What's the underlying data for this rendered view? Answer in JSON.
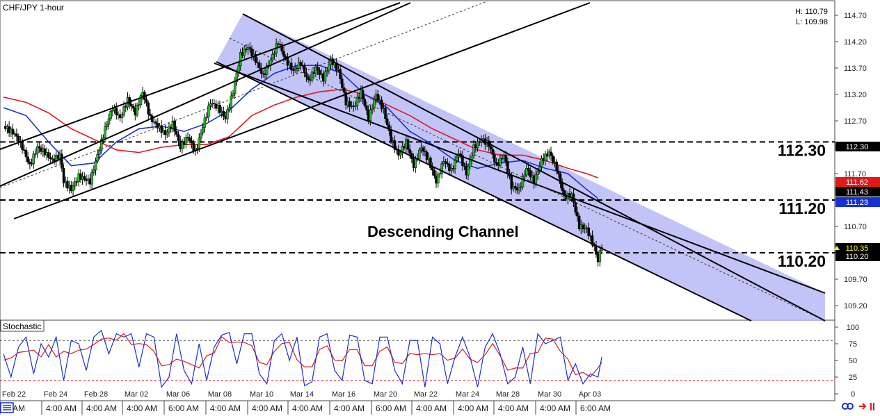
{
  "chart_data": [
    {
      "type": "line",
      "title": "CHF/JPY 1-hour",
      "high_label": "H: 110.79",
      "low_label": "L: 109.98",
      "annotation": "Descending Channel",
      "ylim": [
        108.95,
        114.95
      ],
      "y_ticks": [
        "114.70",
        "114.20",
        "113.70",
        "113.20",
        "112.70",
        "112.20",
        "111.70",
        "111.20",
        "110.70",
        "110.20",
        "109.70",
        "109.20"
      ],
      "support_resistance": [
        {
          "price": 112.3,
          "label": "112.30"
        },
        {
          "price": 111.2,
          "label": "111.20"
        },
        {
          "price": 110.2,
          "label": "110.20"
        }
      ],
      "price_badges": [
        {
          "value": "112.30",
          "bg": "#000000",
          "fg": "#ffffff"
        },
        {
          "value": "111.62",
          "bg": "#e0191b",
          "fg": "#ffffff"
        },
        {
          "value": "111.43",
          "bg": "#000000",
          "fg": "#ffffff"
        },
        {
          "value": "111.23",
          "bg": "#1730d6",
          "fg": "#ffffff"
        },
        {
          "value": "110.35",
          "bg": "#000000",
          "fg": "#ffff00"
        },
        {
          "value": "110.20",
          "bg": "#000000",
          "fg": "#ffffff"
        }
      ],
      "series": [
        {
          "name": "",
          "color": "#1730d6",
          "role": "moving-average-fast"
        },
        {
          "name": "",
          "color": "#e0191b",
          "role": "moving-average-slow"
        }
      ],
      "price_path": [
        [
          0,
          112.6
        ],
        [
          3,
          112.45
        ],
        [
          5,
          112.2
        ],
        [
          7,
          111.85
        ],
        [
          9,
          112.2
        ],
        [
          11,
          112.1
        ],
        [
          13,
          111.95
        ],
        [
          15,
          112.05
        ],
        [
          16,
          111.55
        ],
        [
          18,
          111.4
        ],
        [
          20,
          111.65
        ],
        [
          23,
          111.55
        ],
        [
          25,
          112.05
        ],
        [
          27,
          112.55
        ],
        [
          29,
          112.95
        ],
        [
          31,
          112.75
        ],
        [
          33,
          113.1
        ],
        [
          35,
          112.85
        ],
        [
          37,
          113.25
        ],
        [
          39,
          112.75
        ],
        [
          41,
          112.6
        ],
        [
          43,
          112.45
        ],
        [
          45,
          112.65
        ],
        [
          47,
          112.2
        ],
        [
          49,
          112.4
        ],
        [
          51,
          112.1
        ],
        [
          53,
          112.6
        ],
        [
          55,
          113.05
        ],
        [
          57,
          112.95
        ],
        [
          59,
          112.75
        ],
        [
          61,
          113.25
        ],
        [
          63,
          113.95
        ],
        [
          65,
          114.1
        ],
        [
          67,
          113.85
        ],
        [
          69,
          113.55
        ],
        [
          71,
          113.85
        ],
        [
          73,
          114.2
        ],
        [
          75,
          113.85
        ],
        [
          77,
          113.65
        ],
        [
          79,
          113.8
        ],
        [
          81,
          113.45
        ],
        [
          83,
          113.7
        ],
        [
          85,
          113.5
        ],
        [
          87,
          113.85
        ],
        [
          89,
          113.65
        ],
        [
          91,
          113.05
        ],
        [
          93,
          112.95
        ],
        [
          95,
          113.25
        ],
        [
          97,
          112.75
        ],
        [
          99,
          113.2
        ],
        [
          101,
          112.9
        ],
        [
          103,
          112.35
        ],
        [
          105,
          112.05
        ],
        [
          107,
          112.3
        ],
        [
          109,
          111.85
        ],
        [
          111,
          112.2
        ],
        [
          113,
          111.95
        ],
        [
          115,
          111.55
        ],
        [
          117,
          111.95
        ],
        [
          119,
          111.75
        ],
        [
          121,
          112.1
        ],
        [
          123,
          111.7
        ],
        [
          125,
          112.2
        ],
        [
          127,
          112.35
        ],
        [
          129,
          112.25
        ],
        [
          131,
          111.85
        ],
        [
          133,
          112.05
        ],
        [
          135,
          111.45
        ],
        [
          137,
          111.4
        ],
        [
          139,
          111.8
        ],
        [
          141,
          111.55
        ],
        [
          143,
          111.95
        ],
        [
          145,
          112.1
        ],
        [
          147,
          111.8
        ],
        [
          149,
          111.25
        ],
        [
          151,
          111.3
        ],
        [
          153,
          110.7
        ],
        [
          155,
          110.65
        ],
        [
          157,
          110.3
        ],
        [
          158,
          110.05
        ],
        [
          159,
          110.35
        ]
      ],
      "ma_fast": [
        [
          0,
          112.95
        ],
        [
          6,
          112.8
        ],
        [
          12,
          112.3
        ],
        [
          18,
          111.85
        ],
        [
          24,
          111.9
        ],
        [
          30,
          112.3
        ],
        [
          36,
          112.55
        ],
        [
          42,
          112.6
        ],
        [
          48,
          112.5
        ],
        [
          54,
          112.65
        ],
        [
          60,
          112.9
        ],
        [
          66,
          113.3
        ],
        [
          72,
          113.6
        ],
        [
          78,
          113.75
        ],
        [
          84,
          113.75
        ],
        [
          90,
          113.6
        ],
        [
          96,
          113.2
        ],
        [
          102,
          112.95
        ],
        [
          108,
          112.5
        ],
        [
          114,
          112.25
        ],
        [
          120,
          111.95
        ],
        [
          126,
          111.8
        ],
        [
          132,
          111.9
        ],
        [
          138,
          111.95
        ],
        [
          144,
          111.8
        ],
        [
          150,
          111.7
        ],
        [
          155,
          111.4
        ],
        [
          158,
          111.23
        ]
      ],
      "ma_slow": [
        [
          0,
          113.15
        ],
        [
          6,
          113.05
        ],
        [
          12,
          112.85
        ],
        [
          18,
          112.55
        ],
        [
          24,
          112.35
        ],
        [
          30,
          112.15
        ],
        [
          36,
          112.1
        ],
        [
          42,
          112.2
        ],
        [
          48,
          112.25
        ],
        [
          54,
          112.25
        ],
        [
          60,
          112.4
        ],
        [
          66,
          112.8
        ],
        [
          72,
          113.0
        ],
        [
          78,
          113.15
        ],
        [
          84,
          113.25
        ],
        [
          90,
          113.3
        ],
        [
          96,
          113.2
        ],
        [
          102,
          113.0
        ],
        [
          108,
          112.8
        ],
        [
          114,
          112.55
        ],
        [
          120,
          112.35
        ],
        [
          126,
          112.15
        ],
        [
          132,
          112.05
        ],
        [
          138,
          112.05
        ],
        [
          144,
          111.95
        ],
        [
          150,
          111.8
        ],
        [
          155,
          111.7
        ],
        [
          158,
          111.62
        ]
      ],
      "x_labels_dates": [
        "Feb 22",
        "Feb 24",
        "Feb 28",
        "Mar 02",
        "Mar 06",
        "Mar 08",
        "Mar 10",
        "Mar 14",
        "Mar 16",
        "Mar 20",
        "Mar 22",
        "Mar 24",
        "Mar 28",
        "Mar 30",
        "Apr 03"
      ],
      "x_labels_times": [
        "AM",
        "4:00 AM",
        "4:00 AM",
        "4:00 AM",
        "6:00 AM",
        "4:00 AM",
        "4:00 AM",
        "4:00 AM",
        "4:00 AM",
        "6:00 AM",
        "4:00 AM",
        "4:00 AM",
        "4:00 AM",
        "4:00 AM",
        "6:00 AM"
      ]
    },
    {
      "type": "line",
      "title": "Stochastic",
      "ylim": [
        0,
        100
      ],
      "y_ticks": [
        "100",
        "75",
        "50",
        "25",
        "0"
      ],
      "levels": [
        80,
        20
      ],
      "series": [
        {
          "name": "",
          "color": "#e0191b",
          "role": "%D"
        },
        {
          "name": "",
          "color": "#1730d6",
          "role": "%K"
        }
      ],
      "k_values": [
        [
          0,
          60
        ],
        [
          2,
          25
        ],
        [
          4,
          70
        ],
        [
          6,
          85
        ],
        [
          8,
          30
        ],
        [
          10,
          75
        ],
        [
          12,
          55
        ],
        [
          14,
          85
        ],
        [
          16,
          20
        ],
        [
          18,
          80
        ],
        [
          20,
          75
        ],
        [
          22,
          35
        ],
        [
          24,
          85
        ],
        [
          26,
          95
        ],
        [
          28,
          60
        ],
        [
          30,
          90
        ],
        [
          32,
          85
        ],
        [
          34,
          90
        ],
        [
          36,
          40
        ],
        [
          38,
          90
        ],
        [
          40,
          85
        ],
        [
          42,
          10
        ],
        [
          44,
          25
        ],
        [
          46,
          90
        ],
        [
          48,
          35
        ],
        [
          50,
          15
        ],
        [
          52,
          75
        ],
        [
          54,
          20
        ],
        [
          56,
          70
        ],
        [
          58,
          88
        ],
        [
          60,
          92
        ],
        [
          62,
          45
        ],
        [
          64,
          90
        ],
        [
          66,
          90
        ],
        [
          68,
          30
        ],
        [
          70,
          15
        ],
        [
          72,
          80
        ],
        [
          74,
          90
        ],
        [
          76,
          50
        ],
        [
          78,
          85
        ],
        [
          80,
          12
        ],
        [
          82,
          18
        ],
        [
          84,
          85
        ],
        [
          86,
          90
        ],
        [
          88,
          35
        ],
        [
          90,
          20
        ],
        [
          92,
          88
        ],
        [
          94,
          85
        ],
        [
          96,
          20
        ],
        [
          98,
          15
        ],
        [
          100,
          85
        ],
        [
          102,
          85
        ],
        [
          104,
          35
        ],
        [
          106,
          15
        ],
        [
          108,
          80
        ],
        [
          110,
          80
        ],
        [
          112,
          10
        ],
        [
          114,
          85
        ],
        [
          116,
          75
        ],
        [
          118,
          15
        ],
        [
          120,
          55
        ],
        [
          122,
          85
        ],
        [
          124,
          55
        ],
        [
          126,
          10
        ],
        [
          128,
          70
        ],
        [
          130,
          90
        ],
        [
          132,
          60
        ],
        [
          134,
          15
        ],
        [
          136,
          25
        ],
        [
          138,
          70
        ],
        [
          140,
          15
        ],
        [
          142,
          90
        ],
        [
          144,
          75
        ],
        [
          146,
          80
        ],
        [
          148,
          85
        ],
        [
          150,
          20
        ],
        [
          152,
          45
        ],
        [
          154,
          15
        ],
        [
          156,
          30
        ],
        [
          158,
          25
        ],
        [
          159,
          55
        ]
      ]
    }
  ]
}
